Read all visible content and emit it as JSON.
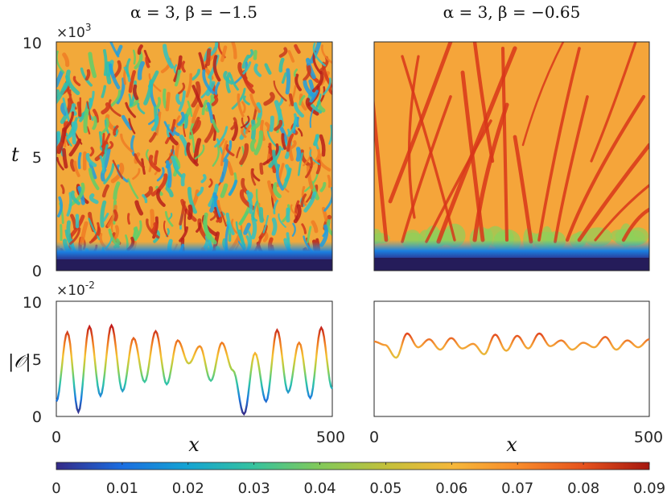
{
  "chart_data": [
    {
      "type": "heatmap",
      "title": "α = 3, β = −1.5",
      "xlabel": "x",
      "ylabel": "t",
      "xlim": [
        0,
        500
      ],
      "ylim": [
        0,
        10000
      ],
      "y_ticks": [
        "0",
        "5",
        "10"
      ],
      "y_exponent_base": "×10",
      "y_exponent_power": "3",
      "regime": "spatiotemporal chaos"
    },
    {
      "type": "heatmap",
      "title": "α = 3, β = −0.65",
      "xlabel": "x",
      "ylabel": "t",
      "xlim": [
        0,
        500
      ],
      "ylim": [
        0,
        10000
      ],
      "regime": "branching defect lines"
    },
    {
      "type": "line",
      "xlabel": "x",
      "ylabel": "|O|",
      "xlim": [
        0,
        500
      ],
      "ylim": [
        0,
        0.1
      ],
      "y_ticks": [
        "0",
        "5",
        "10"
      ],
      "y_exponent_base": "×10",
      "y_exponent_power": "-2",
      "x_ticks": [
        "0",
        "500"
      ],
      "x": [
        0,
        20,
        40,
        60,
        80,
        100,
        120,
        140,
        160,
        180,
        200,
        220,
        240,
        260,
        280,
        300,
        320,
        340,
        360,
        380,
        400,
        420,
        440,
        460,
        480,
        500
      ],
      "y": [
        0.013,
        0.073,
        0.004,
        0.078,
        0.018,
        0.079,
        0.022,
        0.068,
        0.03,
        0.074,
        0.028,
        0.066,
        0.046,
        0.061,
        0.031,
        0.064,
        0.04,
        0.002,
        0.055,
        0.013,
        0.075,
        0.021,
        0.064,
        0.016,
        0.077,
        0.024
      ]
    },
    {
      "type": "line",
      "xlabel": "x",
      "ylabel": "|O|",
      "xlim": [
        0,
        500
      ],
      "ylim": [
        0,
        0.1
      ],
      "x_ticks": [
        "0",
        "500"
      ],
      "x": [
        0,
        20,
        40,
        60,
        80,
        100,
        120,
        140,
        160,
        180,
        200,
        220,
        240,
        260,
        280,
        300,
        320,
        340,
        360,
        380,
        400,
        420,
        440,
        460,
        480,
        500
      ],
      "y": [
        0.065,
        0.062,
        0.051,
        0.072,
        0.06,
        0.067,
        0.058,
        0.068,
        0.059,
        0.063,
        0.054,
        0.071,
        0.057,
        0.07,
        0.059,
        0.072,
        0.061,
        0.066,
        0.058,
        0.064,
        0.06,
        0.069,
        0.058,
        0.066,
        0.06,
        0.067
      ]
    }
  ],
  "colorbar": {
    "min": 0,
    "max": 0.09,
    "tick_labels": [
      "0",
      "0.01",
      "0.02",
      "0.03",
      "0.04",
      "0.05",
      "0.06",
      "0.07",
      "0.08",
      "0.09"
    ],
    "colors": [
      "#352a87",
      "#1b6de0",
      "#14a3d3",
      "#35c2a0",
      "#7fc95b",
      "#c5c03a",
      "#f6b73a",
      "#f88a2a",
      "#e5521d",
      "#a5170f"
    ]
  },
  "labels": {
    "x_axis": "x",
    "t_axis": "t",
    "order_param": "|𝒪|",
    "tick_0": "0",
    "tick_500": "500"
  }
}
